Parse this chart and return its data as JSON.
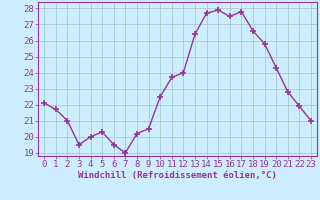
{
  "x": [
    0,
    1,
    2,
    3,
    4,
    5,
    6,
    7,
    8,
    9,
    10,
    11,
    12,
    13,
    14,
    15,
    16,
    17,
    18,
    19,
    20,
    21,
    22,
    23
  ],
  "y": [
    22.1,
    21.7,
    21.0,
    19.5,
    20.0,
    20.3,
    19.5,
    19.0,
    20.2,
    20.5,
    22.5,
    23.7,
    24.0,
    26.4,
    27.7,
    27.9,
    27.5,
    27.8,
    26.6,
    25.8,
    24.3,
    22.8,
    21.9,
    21.0
  ],
  "line_color": "#993399",
  "marker": "+",
  "marker_size": 5,
  "linewidth": 1.0,
  "xlabel": "Windchill (Refroidissement éolien,°C)",
  "ylabel": "",
  "title": "",
  "xlim": [
    -0.5,
    23.5
  ],
  "ylim": [
    18.8,
    28.4
  ],
  "yticks": [
    19,
    20,
    21,
    22,
    23,
    24,
    25,
    26,
    27,
    28
  ],
  "xticks": [
    0,
    1,
    2,
    3,
    4,
    5,
    6,
    7,
    8,
    9,
    10,
    11,
    12,
    13,
    14,
    15,
    16,
    17,
    18,
    19,
    20,
    21,
    22,
    23
  ],
  "bg_color": "#cceeff",
  "grid_color": "#aacccc",
  "tick_color": "#993399",
  "label_color": "#993399",
  "font_size": 6.5
}
